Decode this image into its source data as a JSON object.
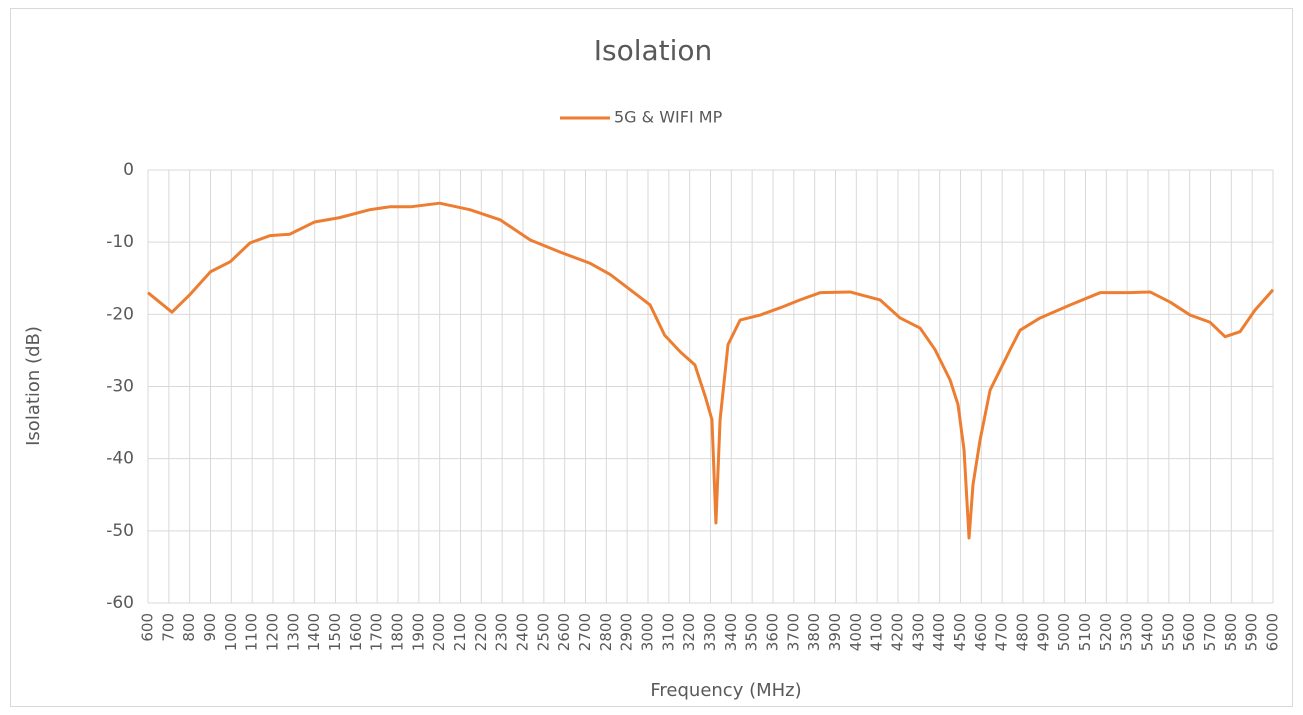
{
  "chart_data": {
    "type": "line",
    "title": "Isolation",
    "x_label": "Frequency (MHz)",
    "y_label": "Isolation (dB)",
    "x": [
      600,
      715,
      800,
      900,
      995,
      1090,
      1185,
      1280,
      1400,
      1520,
      1665,
      1760,
      1860,
      2000,
      2145,
      2290,
      2435,
      2580,
      2720,
      2820,
      2915,
      3010,
      3080,
      3155,
      3225,
      3275,
      3307,
      3326,
      3346,
      3384,
      3442,
      3538,
      3634,
      3730,
      3826,
      3970,
      4114,
      4210,
      4306,
      4378,
      4450,
      4488,
      4517,
      4541,
      4560,
      4594,
      4642,
      4690,
      4738,
      4786,
      4882,
      5026,
      5170,
      5314,
      5410,
      5506,
      5602,
      5698,
      5770,
      5842,
      5914,
      6000
    ],
    "series": [
      {
        "name": "5G & WIFI MP",
        "color": "#ed7d31",
        "values": [
          -17.0,
          -19.7,
          -17.3,
          -14.1,
          -12.7,
          -10.1,
          -9.1,
          -8.9,
          -7.2,
          -6.6,
          -5.5,
          -5.1,
          -5.1,
          -4.6,
          -5.5,
          -6.9,
          -9.7,
          -11.4,
          -12.9,
          -14.5,
          -16.6,
          -18.7,
          -22.9,
          -25.2,
          -27.0,
          -31.4,
          -34.6,
          -48.9,
          -34.6,
          -24.2,
          -20.8,
          -20.1,
          -19.1,
          -18.0,
          -17.0,
          -16.9,
          -18.0,
          -20.5,
          -21.9,
          -24.9,
          -29.1,
          -32.5,
          -38.8,
          -51.0,
          -43.6,
          -37.4,
          -30.5,
          -27.7,
          -24.9,
          -22.2,
          -20.5,
          -18.7,
          -17.0,
          -17.0,
          -16.9,
          -18.3,
          -20.1,
          -21.1,
          -23.1,
          -22.4,
          -19.4,
          -16.6
        ]
      }
    ],
    "xlim": [
      600,
      6000
    ],
    "xticks": [
      600,
      700,
      800,
      900,
      1000,
      1100,
      1200,
      1300,
      1400,
      1500,
      1600,
      1700,
      1800,
      1900,
      2000,
      2100,
      2200,
      2300,
      2400,
      2500,
      2600,
      2700,
      2800,
      2900,
      3000,
      3100,
      3200,
      3300,
      3400,
      3500,
      3600,
      3700,
      3800,
      3900,
      4000,
      4100,
      4200,
      4300,
      4400,
      4500,
      4600,
      4700,
      4800,
      4900,
      5000,
      5100,
      5200,
      5300,
      5400,
      5500,
      5600,
      5700,
      5800,
      5900,
      6000
    ],
    "ylim": [
      -60,
      0
    ],
    "yticks": [
      0,
      -10,
      -20,
      -30,
      -40,
      -50,
      -60
    ],
    "grid": true,
    "legend": "top"
  }
}
